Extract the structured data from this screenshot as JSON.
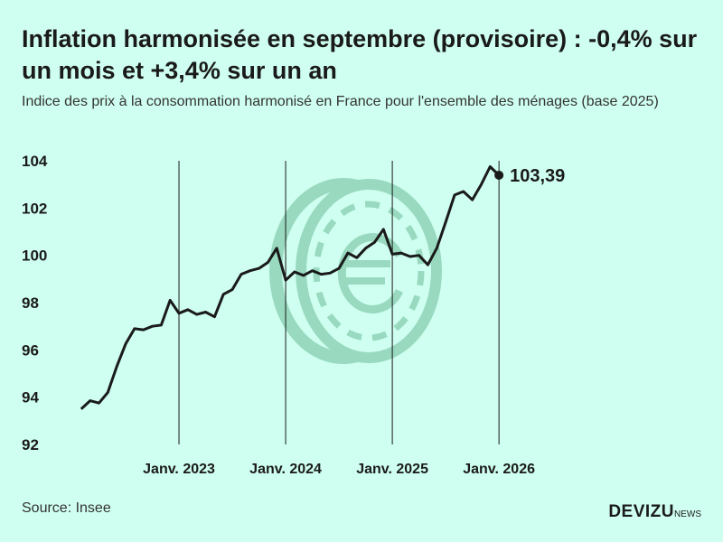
{
  "header": {
    "title": "Inflation harmonisée en septembre (provisoire) : -0,4% sur un mois et +3,4% sur un an",
    "subtitle": "Indice des prix à la consommation harmonisé en France pour l'ensemble des ménages (base 2025)"
  },
  "footer": {
    "source": "Source: Insee",
    "brand_main": "DEVIZU",
    "brand_sub": "NEWS"
  },
  "colors": {
    "background": "#cffff0",
    "line": "#1a1a1a",
    "watermark": "#8fd3b8"
  },
  "watermark_icon": "euro-coin-icon",
  "chart_data": {
    "type": "line",
    "title": "Inflation harmonisée en septembre (provisoire) : -0,4% sur un mois et +3,4% sur un an",
    "subtitle": "Indice des prix à la consommation harmonisé en France pour l'ensemble des ménages (base 2025)",
    "ylim": [
      92,
      104
    ],
    "yticks": [
      92,
      94,
      96,
      98,
      100,
      102,
      104
    ],
    "ytick_labels": [
      "92",
      "94",
      "96",
      "98",
      "100",
      "102",
      "104"
    ],
    "xticks": [
      {
        "month": 12,
        "label": "Janv. 2023"
      },
      {
        "month": 24,
        "label": "Janv. 2024"
      },
      {
        "month": 36,
        "label": "Janv. 2025"
      },
      {
        "month": 48,
        "label": "Janv. 2026"
      }
    ],
    "x_start": "2022-08",
    "x_end_month": 61,
    "grid": "vertical lines at January",
    "series": [
      {
        "values": [
          93.5,
          93.85,
          93.75,
          94.2,
          95.3,
          96.25,
          96.9,
          96.85,
          97.0,
          97.05,
          98.1,
          97.55,
          97.7,
          97.5,
          97.6,
          97.4,
          98.35,
          98.55,
          99.2,
          99.35,
          99.45,
          99.7,
          100.3,
          98.95,
          99.3,
          99.15,
          99.35,
          99.2,
          99.25,
          99.45,
          100.1,
          99.9,
          100.3,
          100.55,
          101.1,
          100.05,
          100.1,
          99.95,
          100.0,
          99.6,
          100.3,
          101.4,
          102.55,
          102.7,
          102.35,
          103.0,
          103.75,
          103.39
        ]
      }
    ],
    "end_label": "103,39"
  }
}
